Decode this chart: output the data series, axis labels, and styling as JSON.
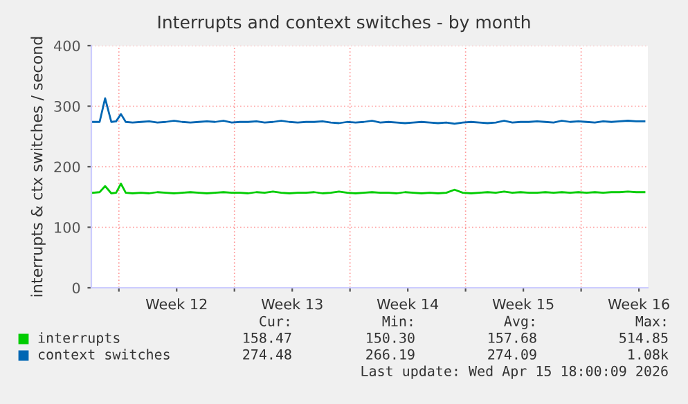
{
  "chart_data": {
    "type": "line",
    "title": "Interrupts and context switches - by month",
    "ylabel": "interrupts & ctx switches / second",
    "x": [
      "2026-03-13T03:00",
      "2026-03-13T13:00",
      "2026-03-13T21:00",
      "2026-03-14T06:00",
      "2026-03-14T13:00",
      "2026-03-14T20:00",
      "2026-03-15T03:00",
      "2026-03-15T13:00",
      "2026-03-16T01:00",
      "2026-03-16T13:00",
      "2026-03-17T01:00",
      "2026-03-17T13:00",
      "2026-03-18T01:00",
      "2026-03-18T13:00",
      "2026-03-19T01:00",
      "2026-03-19T13:00",
      "2026-03-20T01:00",
      "2026-03-20T13:00",
      "2026-03-21T01:00",
      "2026-03-21T13:00",
      "2026-03-22T01:00",
      "2026-03-22T13:00",
      "2026-03-23T01:00",
      "2026-03-23T13:00",
      "2026-03-24T01:00",
      "2026-03-24T13:00",
      "2026-03-25T01:00",
      "2026-03-25T13:00",
      "2026-03-26T01:00",
      "2026-03-26T13:00",
      "2026-03-27T01:00",
      "2026-03-27T13:00",
      "2026-03-28T01:00",
      "2026-03-28T13:00",
      "2026-03-29T01:00",
      "2026-03-29T13:00",
      "2026-03-30T01:00",
      "2026-03-30T13:00",
      "2026-03-31T01:00",
      "2026-03-31T13:00",
      "2026-04-01T01:00",
      "2026-04-01T13:00",
      "2026-04-02T01:00",
      "2026-04-02T13:00",
      "2026-04-03T01:00",
      "2026-04-03T13:00",
      "2026-04-04T01:00",
      "2026-04-04T13:00",
      "2026-04-05T01:00",
      "2026-04-05T13:00",
      "2026-04-06T01:00",
      "2026-04-06T13:00",
      "2026-04-07T01:00",
      "2026-04-07T13:00",
      "2026-04-08T01:00",
      "2026-04-08T13:00",
      "2026-04-09T01:00",
      "2026-04-09T13:00",
      "2026-04-10T01:00",
      "2026-04-10T13:00",
      "2026-04-11T01:00",
      "2026-04-11T13:00",
      "2026-04-12T01:00",
      "2026-04-12T13:00",
      "2026-04-13T01:00",
      "2026-04-13T13:00",
      "2026-04-14T01:00",
      "2026-04-14T13:00",
      "2026-04-15T01:00",
      "2026-04-15T13:00"
    ],
    "series": [
      {
        "name": "interrupts",
        "color": "#00cc00",
        "values": [
          157,
          158,
          168,
          156,
          157,
          172,
          157,
          156,
          157,
          156,
          158,
          157,
          156,
          157,
          158,
          157,
          156,
          157,
          158,
          157,
          157,
          156,
          158,
          157,
          159,
          157,
          156,
          157,
          157,
          158,
          156,
          157,
          159,
          157,
          156,
          157,
          158,
          157,
          157,
          156,
          158,
          157,
          156,
          157,
          156,
          157,
          162,
          157,
          156,
          157,
          158,
          157,
          159,
          157,
          158,
          157,
          157,
          158,
          157,
          158,
          157,
          158,
          157,
          158,
          157,
          158,
          158,
          159,
          158,
          158
        ]
      },
      {
        "name": "context switches",
        "color": "#0066b3",
        "values": [
          274,
          274,
          313,
          274,
          275,
          287,
          274,
          273,
          274,
          275,
          273,
          274,
          276,
          274,
          273,
          274,
          275,
          274,
          276,
          273,
          274,
          274,
          275,
          273,
          274,
          276,
          274,
          273,
          274,
          274,
          275,
          273,
          272,
          274,
          273,
          274,
          276,
          273,
          274,
          273,
          272,
          273,
          274,
          273,
          272,
          273,
          271,
          273,
          274,
          273,
          272,
          273,
          276,
          273,
          274,
          274,
          275,
          274,
          273,
          276,
          274,
          275,
          274,
          273,
          275,
          274,
          275,
          276,
          275,
          275
        ]
      }
    ],
    "xlim": [
      "2026-03-13T01:00",
      "2026-04-15T18:00"
    ],
    "xticks": [
      {
        "value": "2026-03-14T17:00",
        "label": null
      },
      {
        "value": "2026-03-18T05:00",
        "label": "Week 12"
      },
      {
        "value": "2026-03-21T17:00",
        "label": null
      },
      {
        "value": "2026-03-25T05:00",
        "label": "Week 13"
      },
      {
        "value": "2026-03-28T17:00",
        "label": null
      },
      {
        "value": "2026-04-01T05:00",
        "label": "Week 14"
      },
      {
        "value": "2026-04-04T17:00",
        "label": null
      },
      {
        "value": "2026-04-08T05:00",
        "label": "Week 15"
      },
      {
        "value": "2026-04-11T17:00",
        "label": null
      },
      {
        "value": "2026-04-15T05:00",
        "label": "Week 16"
      }
    ],
    "ylim": [
      0,
      400
    ],
    "yticks": [
      0,
      100,
      200,
      300,
      400
    ],
    "grid": true,
    "legend": "bottom",
    "annotations": [
      "Cur:",
      "Min:",
      "Avg:",
      "Max:",
      "158.47",
      "150.30",
      "157.68",
      "514.85",
      "274.48",
      "266.19",
      "274.09",
      "1.08k",
      "Last update: Wed Apr 15 18:00:09 2026"
    ]
  }
}
